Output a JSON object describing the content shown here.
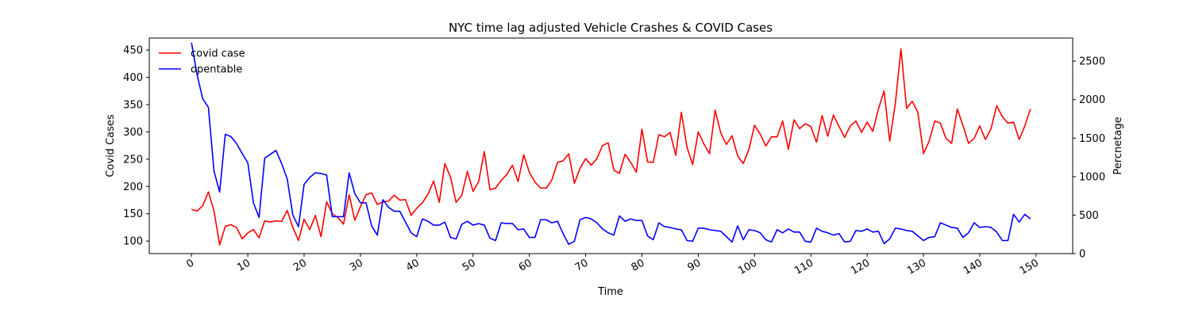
{
  "chart_data": {
    "type": "line",
    "title": "NYC time lag adjusted Vehicle Crashes & COVID Cases",
    "xlabel": "Time",
    "ylabel_left": "Covid Cases",
    "ylabel_right": "Percnetage",
    "xlim": [
      -7.5,
      156.5
    ],
    "ylim_left": [
      77,
      472
    ],
    "ylim_right": [
      0,
      2800
    ],
    "x_ticks": [
      0,
      10,
      20,
      30,
      40,
      50,
      60,
      70,
      80,
      90,
      100,
      110,
      120,
      130,
      140,
      150
    ],
    "y_ticks_left": [
      100,
      150,
      200,
      250,
      300,
      350,
      400,
      450
    ],
    "y_ticks_right": [
      0,
      500,
      1000,
      1500,
      2000,
      2500
    ],
    "legend_position": "top-left",
    "grid": false,
    "series": [
      {
        "name": "covid case",
        "axis": "left",
        "color": "#ff0000",
        "values": [
          158,
          155,
          165,
          190,
          155,
          93,
          127,
          130,
          125,
          104,
          115,
          121,
          106,
          137,
          135,
          137,
          136,
          156,
          125,
          101,
          140,
          121,
          147,
          108,
          172,
          150,
          143,
          131,
          185,
          138,
          163,
          185,
          188,
          167,
          172,
          173,
          184,
          175,
          176,
          147,
          160,
          170,
          186,
          210,
          171,
          242,
          217,
          171,
          184,
          228,
          191,
          209,
          264,
          194,
          197,
          211,
          222,
          239,
          209,
          258,
          226,
          208,
          197,
          197,
          212,
          244,
          247,
          260,
          206,
          233,
          251,
          239,
          251,
          275,
          280,
          230,
          224,
          259,
          244,
          226,
          305,
          245,
          244,
          295,
          291,
          299,
          257,
          336,
          272,
          240,
          300,
          278,
          260,
          340,
          298,
          277,
          293,
          256,
          242,
          268,
          312,
          296,
          274,
          291,
          291,
          320,
          268,
          322,
          306,
          315,
          310,
          281,
          330,
          292,
          331,
          310,
          290,
          311,
          320,
          299,
          318,
          301,
          342,
          375,
          283,
          352,
          452,
          343,
          356,
          336,
          260,
          283,
          320,
          316,
          288,
          279,
          342,
          312,
          279,
          288,
          311,
          286,
          306,
          348,
          328,
          316,
          318,
          286,
          311,
          342
        ]
      },
      {
        "name": "opentable",
        "axis": "right",
        "color": "#0000ff",
        "values": [
          2740,
          2320,
          2010,
          1900,
          1070,
          800,
          1550,
          1520,
          1430,
          1300,
          1180,
          660,
          470,
          1240,
          1290,
          1340,
          1170,
          970,
          500,
          350,
          900,
          990,
          1050,
          1040,
          1020,
          480,
          480,
          480,
          1050,
          780,
          660,
          660,
          360,
          240,
          700,
          600,
          550,
          550,
          410,
          270,
          220,
          450,
          420,
          370,
          370,
          410,
          210,
          190,
          380,
          420,
          370,
          390,
          370,
          200,
          170,
          400,
          390,
          390,
          310,
          320,
          210,
          210,
          440,
          440,
          400,
          420,
          260,
          120,
          160,
          440,
          470,
          450,
          400,
          320,
          270,
          240,
          490,
          420,
          450,
          430,
          430,
          230,
          180,
          400,
          350,
          340,
          320,
          310,
          170,
          160,
          330,
          330,
          310,
          300,
          290,
          220,
          150,
          360,
          180,
          310,
          300,
          270,
          180,
          150,
          310,
          270,
          320,
          280,
          280,
          160,
          150,
          330,
          290,
          270,
          240,
          260,
          150,
          160,
          300,
          290,
          320,
          280,
          290,
          130,
          190,
          330,
          320,
          300,
          290,
          230,
          170,
          210,
          220,
          400,
          370,
          340,
          330,
          210,
          270,
          400,
          340,
          350,
          340,
          280,
          170,
          170,
          510,
          410,
          510,
          450
        ]
      }
    ]
  }
}
